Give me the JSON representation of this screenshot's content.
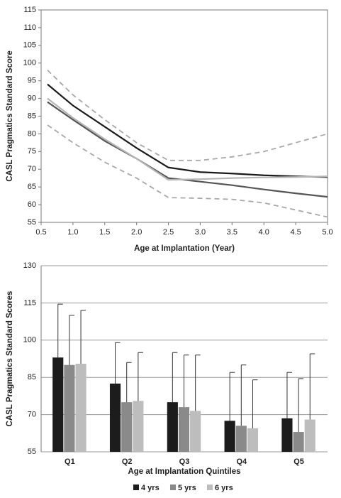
{
  "chart_data": [
    {
      "type": "line",
      "x_label": "Age at Implantation (Year)",
      "y_label": "CASL Pragmatics Standard Score",
      "x": [
        0.6,
        1.0,
        1.5,
        2.0,
        2.5,
        3.0,
        3.5,
        4.0,
        4.5,
        5.0
      ],
      "series": [
        {
          "color": "#1a1a1a",
          "style": "solid",
          "values": [
            94,
            88,
            82,
            76,
            70.5,
            69.2,
            68.8,
            68.3,
            68,
            67.8
          ]
        },
        {
          "color": "#555555",
          "style": "solid",
          "values": [
            89,
            84,
            78,
            73,
            67.5,
            66.5,
            65.5,
            64.3,
            63.2,
            62.2
          ]
        },
        {
          "color": "#b5b5b5",
          "style": "solid",
          "values": [
            90,
            84.5,
            78.5,
            73,
            67,
            67.2,
            67.5,
            67.7,
            67.8,
            68
          ]
        },
        {
          "color": "#a8a8a8",
          "style": "dashed",
          "values": [
            98,
            91,
            84,
            77.5,
            72.5,
            72.5,
            73.5,
            75,
            77.5,
            80
          ]
        },
        {
          "color": "#a8a8a8",
          "style": "dashed",
          "values": [
            82.5,
            77.5,
            72,
            67.5,
            62,
            61.8,
            61.5,
            60.5,
            58.5,
            56.5
          ]
        }
      ],
      "xlim": [
        0.5,
        5.0
      ],
      "xticks": [
        0.5,
        {
          "value": 1,
          "label": "1.0"
        },
        1.5,
        {
          "value": 2,
          "label": "2.0"
        },
        2.5,
        {
          "value": 3,
          "label": "3.0"
        },
        3.5,
        {
          "value": 4,
          "label": "4.0"
        },
        4.5,
        {
          "value": 5,
          "label": "5.0"
        }
      ],
      "ylim": [
        55,
        115
      ],
      "yticks": [
        55,
        60,
        65,
        70,
        75,
        80,
        85,
        90,
        95,
        100,
        105,
        110,
        115
      ],
      "grid": false
    },
    {
      "type": "bar",
      "x_label": "Age at Implantation Quintiles",
      "y_label": "CASL Pragmatics Standard Scores",
      "categories": [
        "Q1",
        "Q2",
        "Q3",
        "Q4",
        "Q5"
      ],
      "series": [
        {
          "name": "4 yrs",
          "color": "#1c1c1c",
          "values": [
            93,
            82.5,
            75,
            67.5,
            68.5
          ],
          "errors": [
            21.5,
            16.5,
            20,
            19.5,
            18.5
          ]
        },
        {
          "name": "5 yrs",
          "color": "#8a8a8a",
          "values": [
            90,
            75,
            73,
            65.5,
            63
          ],
          "errors": [
            20,
            16,
            21,
            24.5,
            21.5
          ]
        },
        {
          "name": "6 yrs",
          "color": "#bdbdbd",
          "values": [
            90.5,
            75.5,
            71.5,
            64.5,
            68
          ],
          "errors": [
            21.5,
            19.5,
            22.5,
            19.5,
            26.5
          ]
        }
      ],
      "ylim": [
        55,
        130
      ],
      "yticks": [
        55,
        70,
        85,
        100,
        115,
        130
      ],
      "grid": true,
      "legend": "bottom"
    }
  ]
}
